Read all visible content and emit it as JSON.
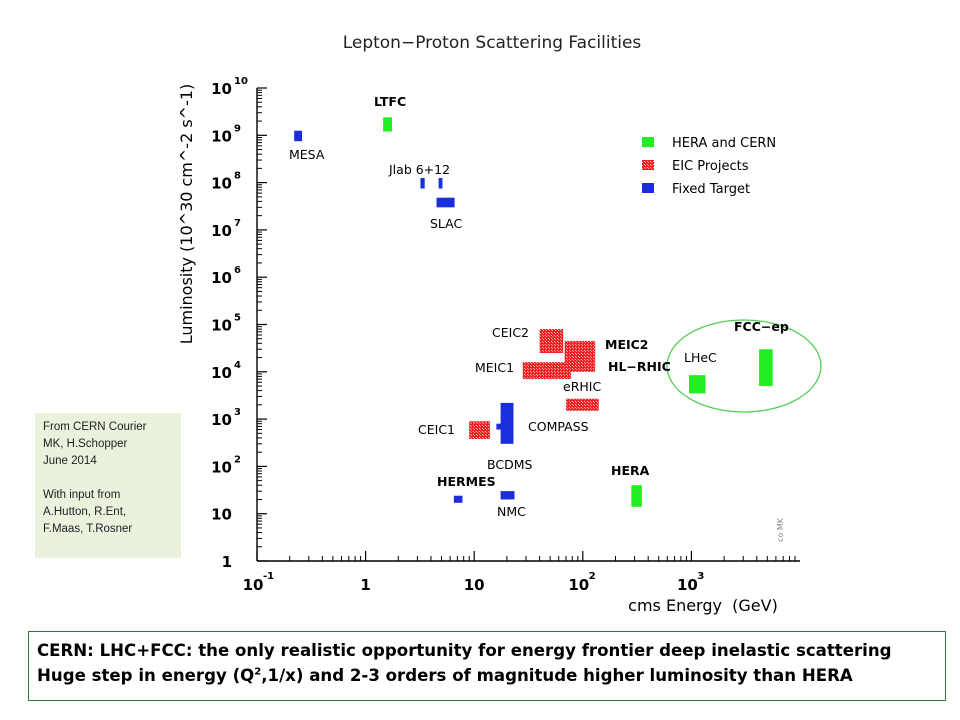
{
  "colors": {
    "hera_cern": "#22ee22",
    "eic_projects": "#ee2222",
    "fixed_target": "#1a2edc",
    "highlight_circle": "#55cc55",
    "caption_border": "#2e7d32",
    "note_background": "#eaf1dd"
  },
  "chart_data": {
    "type": "scatter",
    "title": "Lepton−Proton Scattering Facilities",
    "xlabel": "cms Energy  (GeV)",
    "ylabel": "Luminosity (10^30 cm^-2 s^-1)",
    "x_scale": "log",
    "y_scale": "log",
    "xlim": [
      0.1,
      10000
    ],
    "ylim": [
      1,
      10000000000
    ],
    "x_ticks": [
      {
        "value": 0.1,
        "base": "10",
        "exp": "-1"
      },
      {
        "value": 1,
        "base": "1",
        "exp": ""
      },
      {
        "value": 10,
        "base": "10",
        "exp": ""
      },
      {
        "value": 100,
        "base": "10",
        "exp": "2"
      },
      {
        "value": 1000,
        "base": "10",
        "exp": "3"
      }
    ],
    "y_ticks": [
      {
        "value": 1,
        "base": "1",
        "exp": ""
      },
      {
        "value": 10,
        "base": "10",
        "exp": ""
      },
      {
        "value": 100,
        "base": "10",
        "exp": "2"
      },
      {
        "value": 1000,
        "base": "10",
        "exp": "3"
      },
      {
        "value": 10000,
        "base": "10",
        "exp": "4"
      },
      {
        "value": 100000,
        "base": "10",
        "exp": "5"
      },
      {
        "value": 1000000,
        "base": "10",
        "exp": "6"
      },
      {
        "value": 10000000,
        "base": "10",
        "exp": "7"
      },
      {
        "value": 100000000,
        "base": "10",
        "exp": "8"
      },
      {
        "value": 1000000000,
        "base": "10",
        "exp": "9"
      },
      {
        "value": 10000000000,
        "base": "10",
        "exp": "10"
      }
    ],
    "legend": {
      "placement": "top-right",
      "entries": [
        {
          "label": "HERA and CERN",
          "category": "hera_cern"
        },
        {
          "label": "EIC Projects",
          "category": "eic_projects"
        },
        {
          "label": "Fixed Target",
          "category": "fixed_target"
        }
      ]
    },
    "facilities": [
      {
        "name": "LTFC",
        "category": "hera_cern",
        "x_range": [
          1.45,
          1.75
        ],
        "y_range": [
          1200000000,
          2400000000
        ]
      },
      {
        "name": "MESA",
        "category": "fixed_target",
        "x_range": [
          0.22,
          0.26
        ],
        "y_range": [
          750000000,
          1250000000
        ]
      },
      {
        "name": "Jlab 6",
        "category": "fixed_target",
        "x_range": [
          3.2,
          3.5
        ],
        "y_range": [
          75000000,
          125000000
        ]
      },
      {
        "name": "Jlab 12",
        "category": "fixed_target",
        "x_range": [
          4.7,
          5.1
        ],
        "y_range": [
          75000000,
          125000000
        ]
      },
      {
        "name": "SLAC",
        "category": "fixed_target",
        "x_range": [
          4.5,
          6.6
        ],
        "y_range": [
          30000000,
          48000000
        ]
      },
      {
        "name": "CEIC2",
        "category": "eic_projects",
        "x_range": [
          40,
          66
        ],
        "y_range": [
          25000,
          80000
        ]
      },
      {
        "name": "MEIC2",
        "category": "eic_projects",
        "x_range": [
          68,
          130
        ],
        "y_range": [
          20000,
          45000
        ]
      },
      {
        "name": "MEIC1",
        "category": "eic_projects",
        "x_range": [
          28,
          78
        ],
        "y_range": [
          7000,
          16000
        ]
      },
      {
        "name": "HL-RHIC",
        "category": "eic_projects",
        "x_range": [
          68,
          130
        ],
        "y_range": [
          10000,
          20000
        ]
      },
      {
        "name": "eRHIC",
        "category": "eic_projects",
        "x_range": [
          70,
          140
        ],
        "y_range": [
          1500,
          2700
        ]
      },
      {
        "name": "CEIC1",
        "category": "eic_projects",
        "x_range": [
          9,
          14
        ],
        "y_range": [
          380,
          900
        ]
      },
      {
        "name": "COMPASS",
        "category": "fixed_target",
        "x_range": [
          16,
          18
        ],
        "y_range": [
          600,
          800
        ]
      },
      {
        "name": "BCDMS",
        "category": "fixed_target",
        "x_range": [
          17.5,
          23
        ],
        "y_range": [
          300,
          2200
        ]
      },
      {
        "name": "HERMES",
        "category": "fixed_target",
        "x_range": [
          6.5,
          7.8
        ],
        "y_range": [
          17,
          24
        ]
      },
      {
        "name": "NMC",
        "category": "fixed_target",
        "x_range": [
          17.5,
          23.5
        ],
        "y_range": [
          20,
          30
        ]
      },
      {
        "name": "HERA",
        "category": "hera_cern",
        "x_range": [
          280,
          350
        ],
        "y_range": [
          14,
          40
        ]
      },
      {
        "name": "LHeC",
        "category": "hera_cern",
        "x_range": [
          950,
          1350
        ],
        "y_range": [
          3500,
          8500
        ]
      },
      {
        "name": "FCC−ep",
        "category": "hera_cern",
        "x_range": [
          4200,
          5600
        ],
        "y_range": [
          5000,
          30000
        ]
      }
    ],
    "annotations": [
      "co MK"
    ]
  },
  "labels": {
    "ltfc": "LTFC",
    "mesa": "MESA",
    "jlab": "Jlab 6+12",
    "slac": "SLAC",
    "ceic2": "CEIC2",
    "meic2": "MEIC2",
    "meic1": "MEIC1",
    "hlrhic": "HL−RHIC",
    "erhic": "eRHIC",
    "ceic1": "CEIC1",
    "compass": "COMPASS",
    "bcdms": "BCDMS",
    "hermes": "HERMES",
    "nmc": "NMC",
    "hera": "HERA",
    "lhec": "LHeC",
    "fccep": "FCC−ep"
  },
  "note": {
    "line1": "From CERN Courier",
    "line2": "MK, H.Schopper",
    "line3": "June 2014",
    "line4": "With input from",
    "line5": "A.Hutton,  R.Ent,",
    "line6": "F.Maas, T.Rosner"
  },
  "caption": {
    "line1": "CERN: LHC+FCC: the only realistic opportunity for energy frontier deep inelastic scattering",
    "line2_pre": "Huge step in energy (Q",
    "line2_sup": "2",
    "line2_post": ",1/x) and 2-3  orders of magnitude higher luminosity than HERA"
  }
}
